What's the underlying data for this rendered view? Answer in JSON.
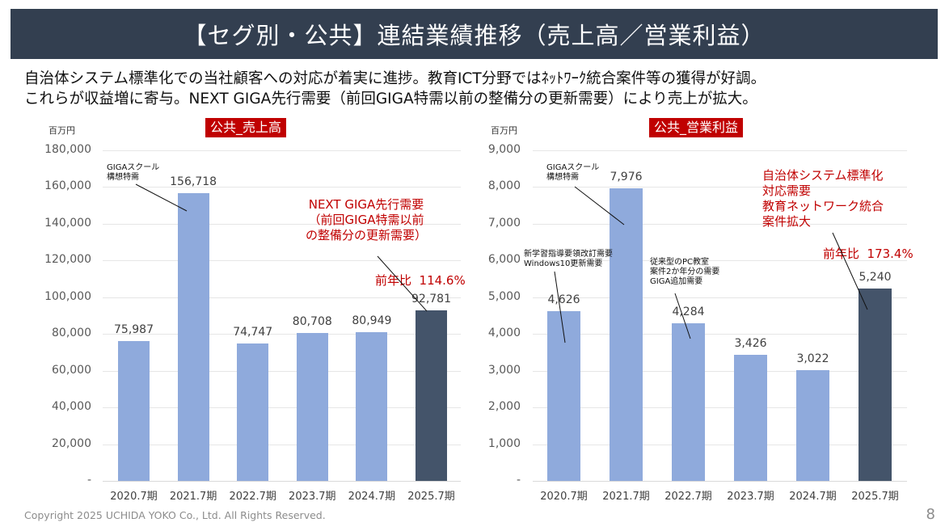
{
  "header": {
    "title": "【セグ別・公共】連結業績推移（売上高／営業利益）",
    "subtitle_line1": "自治体システム標準化での当社顧客への対応が着実に進捗。教育ICT分野ではﾈｯﾄﾜｰｸ統合案件等の獲得が好調。",
    "subtitle_line2": "これらが収益増に寄与。NEXT GIGA先行需要（前回GIGA特需以前の整備分の更新需要）により売上が拡大。"
  },
  "colors": {
    "title_bg": "#333f50",
    "bar_normal": "#8faadc",
    "bar_highlight": "#44546a",
    "accent_red": "#c00000"
  },
  "chart_data": [
    {
      "type": "bar",
      "title": "公共_売上高",
      "unit": "百万円",
      "categories": [
        "2020.7期",
        "2021.7期",
        "2022.7期",
        "2023.7期",
        "2024.7期",
        "2025.7期"
      ],
      "values": [
        75987,
        156718,
        74747,
        80708,
        80949,
        92781
      ],
      "value_labels": [
        "75,987",
        "156,718",
        "74,747",
        "80,708",
        "80,949",
        "92,781"
      ],
      "yticks": [
        "180,000",
        "160,000",
        "140,000",
        "120,000",
        "100,000",
        "80,000",
        "60,000",
        "40,000",
        "20,000",
        "-"
      ],
      "ylim": [
        0,
        180000
      ],
      "grid": true,
      "highlight_index": 5,
      "annotations": [
        {
          "text": "GIGAスクール\n構想特需",
          "color": "black",
          "target": "2021.7期"
        },
        {
          "text": "NEXT GIGA先行需要\n（前回GIGA特需以前\nの整備分の更新需要）",
          "color": "red",
          "target": "2025.7期"
        },
        {
          "text": "前年比  114.6%",
          "color": "red",
          "target": "2025.7期"
        }
      ]
    },
    {
      "type": "bar",
      "title": "公共_営業利益",
      "unit": "百万円",
      "categories": [
        "2020.7期",
        "2021.7期",
        "2022.7期",
        "2023.7期",
        "2024.7期",
        "2025.7期"
      ],
      "values": [
        4626,
        7976,
        4284,
        3426,
        3022,
        5240
      ],
      "value_labels": [
        "4,626",
        "7,976",
        "4,284",
        "3,426",
        "3,022",
        "5,240"
      ],
      "yticks": [
        "9,000",
        "8,000",
        "7,000",
        "6,000",
        "5,000",
        "4,000",
        "3,000",
        "2,000",
        "1,000",
        "-"
      ],
      "ylim": [
        0,
        9000
      ],
      "grid": true,
      "highlight_index": 5,
      "annotations": [
        {
          "text": "GIGAスクール\n構想特需",
          "color": "black",
          "target": "2021.7期"
        },
        {
          "text": "新学習指導要領改訂需要\nWindows10更新需要",
          "color": "black",
          "target": "2020.7期"
        },
        {
          "text": "従来型のPC教室\n案件2か年分の需要\nGIGA追加需要",
          "color": "black",
          "target": "2022.7期"
        },
        {
          "text": "自治体システム標準化\n対応需要\n教育ネットワーク統合\n案件拡大",
          "color": "red",
          "target": "2025.7期"
        },
        {
          "text": "前年比  173.4%",
          "color": "red",
          "target": "2025.7期"
        }
      ]
    }
  ],
  "footer": {
    "copyright": "Copyright 2025 UCHIDA YOKO Co., Ltd. All Rights Reserved.",
    "page_number": "8"
  }
}
